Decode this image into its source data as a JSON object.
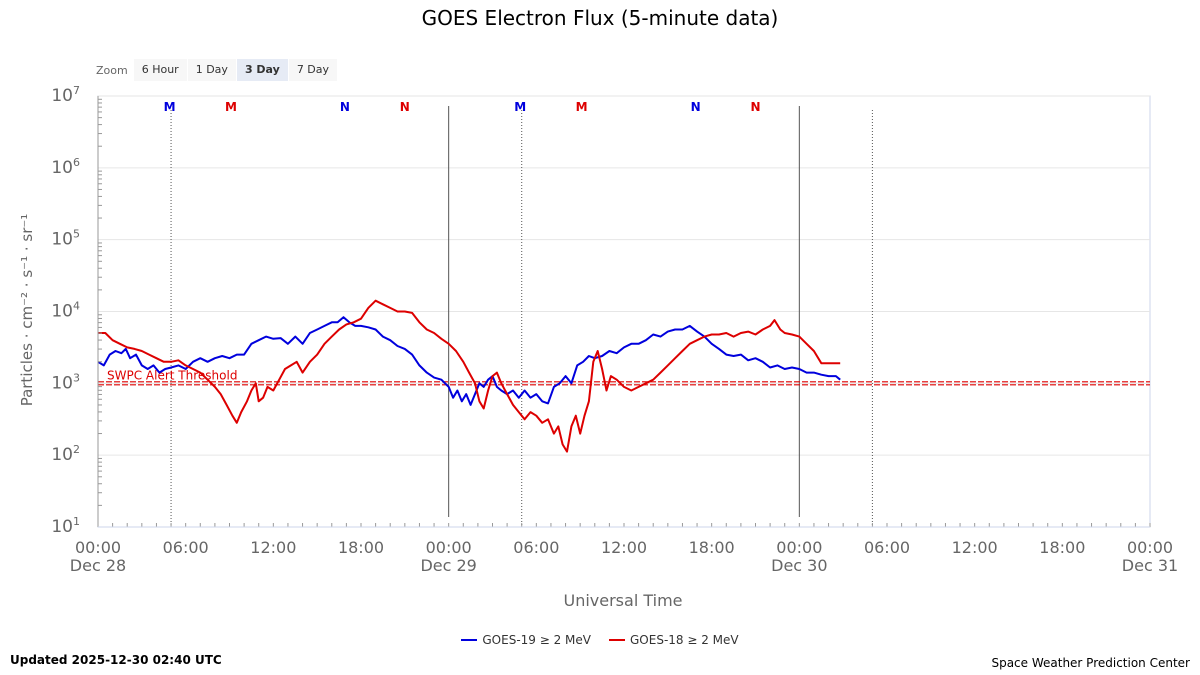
{
  "title": "GOES Electron Flux (5-minute data)",
  "zoom": {
    "label": "Zoom",
    "buttons": [
      "6 Hour",
      "1 Day",
      "3 Day",
      "7 Day"
    ],
    "active": "3 Day"
  },
  "colors": {
    "goes19": "#0000dd",
    "goes18": "#dd0000",
    "threshold": "#dd0000",
    "grid": "#e6e6e6",
    "axis": "#ccd6eb"
  },
  "legend": {
    "goes19_label": "GOES-19 ≥ 2 MeV",
    "goes18_label": "GOES-18 ≥ 2 MeV"
  },
  "footer": {
    "updated": "Updated 2025-12-30 02:40 UTC",
    "credit": "Space Weather Prediction Center"
  },
  "chart_data": {
    "type": "line",
    "title": "GOES Electron Flux (5-minute data)",
    "xlabel": "Universal Time",
    "ylabel": "Particles · cm⁻² · s⁻¹ · sr⁻¹",
    "x_unit": "hours since Dec 28 00:00 UTC",
    "xlim": [
      0,
      72
    ],
    "x_ticks": [
      {
        "x": 0,
        "time": "00:00",
        "date": "Dec 28"
      },
      {
        "x": 6,
        "time": "06:00",
        "date": ""
      },
      {
        "x": 12,
        "time": "12:00",
        "date": ""
      },
      {
        "x": 18,
        "time": "18:00",
        "date": ""
      },
      {
        "x": 24,
        "time": "00:00",
        "date": "Dec 29"
      },
      {
        "x": 30,
        "time": "06:00",
        "date": ""
      },
      {
        "x": 36,
        "time": "12:00",
        "date": ""
      },
      {
        "x": 42,
        "time": "18:00",
        "date": ""
      },
      {
        "x": 48,
        "time": "00:00",
        "date": "Dec 30"
      },
      {
        "x": 54,
        "time": "06:00",
        "date": ""
      },
      {
        "x": 60,
        "time": "12:00",
        "date": ""
      },
      {
        "x": 66,
        "time": "18:00",
        "date": ""
      },
      {
        "x": 72,
        "time": "00:00",
        "date": "Dec 31"
      }
    ],
    "y_scale": "log",
    "ylim_exponent": [
      1,
      7
    ],
    "y_ticks": [
      {
        "value": 1,
        "base": "10",
        "exp": "1"
      },
      {
        "value": 2,
        "base": "10",
        "exp": "2"
      },
      {
        "value": 3,
        "base": "10",
        "exp": "3"
      },
      {
        "value": 4,
        "base": "10",
        "exp": "4"
      },
      {
        "value": 5,
        "base": "10",
        "exp": "5"
      },
      {
        "value": 6,
        "base": "10",
        "exp": "6"
      },
      {
        "value": 7,
        "base": "10",
        "exp": "7"
      }
    ],
    "grid": true,
    "threshold": {
      "label": "SWPC Alert Threshold",
      "log10": 3.0
    },
    "day_boundaries": [
      24,
      48
    ],
    "midnight_markers": [
      {
        "label": "M",
        "x": 4.9,
        "series": "goes19"
      },
      {
        "label": "M",
        "x": 9.1,
        "series": "goes18"
      },
      {
        "label": "N",
        "x": 16.9,
        "series": "goes19"
      },
      {
        "label": "N",
        "x": 21.0,
        "series": "goes18"
      },
      {
        "label": "M",
        "x": 28.9,
        "series": "goes19"
      },
      {
        "label": "M",
        "x": 33.1,
        "series": "goes18"
      },
      {
        "label": "N",
        "x": 40.9,
        "series": "goes19"
      },
      {
        "label": "N",
        "x": 45.0,
        "series": "goes18"
      }
    ],
    "dotted_lines": [
      5.0,
      29.0,
      53.0
    ],
    "legend_position": "bottom-center",
    "series": [
      {
        "name": "GOES-19 ≥ 2 MeV",
        "key": "goes19",
        "points": [
          [
            0,
            3.3
          ],
          [
            0.4,
            3.25
          ],
          [
            0.8,
            3.4
          ],
          [
            1.2,
            3.45
          ],
          [
            1.6,
            3.42
          ],
          [
            1.9,
            3.48
          ],
          [
            2.2,
            3.35
          ],
          [
            2.6,
            3.4
          ],
          [
            3.0,
            3.25
          ],
          [
            3.4,
            3.2
          ],
          [
            3.8,
            3.25
          ],
          [
            4.2,
            3.15
          ],
          [
            4.6,
            3.2
          ],
          [
            5.0,
            3.22
          ],
          [
            5.5,
            3.25
          ],
          [
            6.0,
            3.2
          ],
          [
            6.5,
            3.3
          ],
          [
            7.0,
            3.35
          ],
          [
            7.5,
            3.3
          ],
          [
            8.0,
            3.35
          ],
          [
            8.5,
            3.38
          ],
          [
            9.0,
            3.35
          ],
          [
            9.5,
            3.4
          ],
          [
            10.0,
            3.4
          ],
          [
            10.5,
            3.55
          ],
          [
            11.0,
            3.6
          ],
          [
            11.5,
            3.65
          ],
          [
            12.0,
            3.62
          ],
          [
            12.5,
            3.63
          ],
          [
            13.0,
            3.55
          ],
          [
            13.5,
            3.65
          ],
          [
            14.0,
            3.55
          ],
          [
            14.5,
            3.7
          ],
          [
            15.0,
            3.75
          ],
          [
            15.5,
            3.8
          ],
          [
            16.0,
            3.85
          ],
          [
            16.4,
            3.85
          ],
          [
            16.8,
            3.92
          ],
          [
            17.2,
            3.85
          ],
          [
            17.6,
            3.8
          ],
          [
            18.0,
            3.8
          ],
          [
            18.5,
            3.78
          ],
          [
            19.0,
            3.75
          ],
          [
            19.5,
            3.65
          ],
          [
            20.0,
            3.6
          ],
          [
            20.5,
            3.52
          ],
          [
            21.0,
            3.48
          ],
          [
            21.5,
            3.4
          ],
          [
            22.0,
            3.25
          ],
          [
            22.5,
            3.15
          ],
          [
            23.0,
            3.08
          ],
          [
            23.5,
            3.05
          ],
          [
            24.0,
            2.95
          ],
          [
            24.3,
            2.8
          ],
          [
            24.6,
            2.9
          ],
          [
            24.9,
            2.75
          ],
          [
            25.2,
            2.85
          ],
          [
            25.5,
            2.7
          ],
          [
            25.8,
            2.85
          ],
          [
            26.1,
            3.0
          ],
          [
            26.4,
            2.95
          ],
          [
            26.7,
            3.05
          ],
          [
            27.0,
            3.1
          ],
          [
            27.3,
            2.95
          ],
          [
            27.6,
            2.9
          ],
          [
            28.0,
            2.85
          ],
          [
            28.4,
            2.9
          ],
          [
            28.8,
            2.8
          ],
          [
            29.2,
            2.9
          ],
          [
            29.6,
            2.8
          ],
          [
            30.0,
            2.85
          ],
          [
            30.4,
            2.75
          ],
          [
            30.8,
            2.72
          ],
          [
            31.2,
            2.95
          ],
          [
            31.6,
            3.0
          ],
          [
            32.0,
            3.1
          ],
          [
            32.4,
            3.0
          ],
          [
            32.8,
            3.25
          ],
          [
            33.2,
            3.3
          ],
          [
            33.6,
            3.38
          ],
          [
            34.0,
            3.35
          ],
          [
            34.5,
            3.38
          ],
          [
            35.0,
            3.45
          ],
          [
            35.5,
            3.42
          ],
          [
            36.0,
            3.5
          ],
          [
            36.5,
            3.55
          ],
          [
            37.0,
            3.55
          ],
          [
            37.5,
            3.6
          ],
          [
            38.0,
            3.68
          ],
          [
            38.5,
            3.65
          ],
          [
            39.0,
            3.72
          ],
          [
            39.5,
            3.75
          ],
          [
            40.0,
            3.75
          ],
          [
            40.5,
            3.8
          ],
          [
            41.0,
            3.72
          ],
          [
            41.5,
            3.65
          ],
          [
            42.0,
            3.55
          ],
          [
            42.5,
            3.48
          ],
          [
            43.0,
            3.4
          ],
          [
            43.5,
            3.38
          ],
          [
            44.0,
            3.4
          ],
          [
            44.5,
            3.32
          ],
          [
            45.0,
            3.35
          ],
          [
            45.5,
            3.3
          ],
          [
            46.0,
            3.22
          ],
          [
            46.5,
            3.25
          ],
          [
            47.0,
            3.2
          ],
          [
            47.5,
            3.22
          ],
          [
            48.0,
            3.2
          ],
          [
            48.5,
            3.15
          ],
          [
            49.0,
            3.15
          ],
          [
            49.5,
            3.12
          ],
          [
            50.0,
            3.1
          ],
          [
            50.5,
            3.1
          ],
          [
            50.8,
            3.05
          ]
        ]
      },
      {
        "name": "GOES-18 ≥ 2 MeV",
        "key": "goes18",
        "points": [
          [
            0,
            3.7
          ],
          [
            0.5,
            3.7
          ],
          [
            1.0,
            3.6
          ],
          [
            1.5,
            3.55
          ],
          [
            2.0,
            3.5
          ],
          [
            2.5,
            3.48
          ],
          [
            3.0,
            3.45
          ],
          [
            3.5,
            3.4
          ],
          [
            4.0,
            3.35
          ],
          [
            4.5,
            3.3
          ],
          [
            5.0,
            3.3
          ],
          [
            5.5,
            3.32
          ],
          [
            6.0,
            3.25
          ],
          [
            6.5,
            3.2
          ],
          [
            7.0,
            3.15
          ],
          [
            7.5,
            3.05
          ],
          [
            8.0,
            2.95
          ],
          [
            8.4,
            2.85
          ],
          [
            8.8,
            2.7
          ],
          [
            9.2,
            2.55
          ],
          [
            9.5,
            2.45
          ],
          [
            9.8,
            2.6
          ],
          [
            10.2,
            2.75
          ],
          [
            10.5,
            2.9
          ],
          [
            10.8,
            3.0
          ],
          [
            11.0,
            2.75
          ],
          [
            11.3,
            2.8
          ],
          [
            11.6,
            2.95
          ],
          [
            12.0,
            2.9
          ],
          [
            12.4,
            3.05
          ],
          [
            12.8,
            3.2
          ],
          [
            13.2,
            3.25
          ],
          [
            13.6,
            3.3
          ],
          [
            14.0,
            3.15
          ],
          [
            14.5,
            3.3
          ],
          [
            15.0,
            3.4
          ],
          [
            15.5,
            3.55
          ],
          [
            16.0,
            3.65
          ],
          [
            16.5,
            3.75
          ],
          [
            17.0,
            3.82
          ],
          [
            17.5,
            3.85
          ],
          [
            18.0,
            3.9
          ],
          [
            18.5,
            4.05
          ],
          [
            19.0,
            4.15
          ],
          [
            19.5,
            4.1
          ],
          [
            20.0,
            4.05
          ],
          [
            20.5,
            4.0
          ],
          [
            21.0,
            4.0
          ],
          [
            21.5,
            3.98
          ],
          [
            22.0,
            3.85
          ],
          [
            22.5,
            3.75
          ],
          [
            23.0,
            3.7
          ],
          [
            23.5,
            3.62
          ],
          [
            24.0,
            3.55
          ],
          [
            24.5,
            3.45
          ],
          [
            25.0,
            3.3
          ],
          [
            25.4,
            3.15
          ],
          [
            25.8,
            3.0
          ],
          [
            26.1,
            2.75
          ],
          [
            26.4,
            2.65
          ],
          [
            26.7,
            2.9
          ],
          [
            27.0,
            3.1
          ],
          [
            27.3,
            3.15
          ],
          [
            27.6,
            3.0
          ],
          [
            28.0,
            2.85
          ],
          [
            28.4,
            2.7
          ],
          [
            28.8,
            2.6
          ],
          [
            29.2,
            2.5
          ],
          [
            29.6,
            2.6
          ],
          [
            30.0,
            2.55
          ],
          [
            30.4,
            2.45
          ],
          [
            30.8,
            2.5
          ],
          [
            31.2,
            2.3
          ],
          [
            31.5,
            2.4
          ],
          [
            31.8,
            2.15
          ],
          [
            32.1,
            2.05
          ],
          [
            32.4,
            2.4
          ],
          [
            32.7,
            2.55
          ],
          [
            33.0,
            2.3
          ],
          [
            33.3,
            2.55
          ],
          [
            33.6,
            2.75
          ],
          [
            33.9,
            3.3
          ],
          [
            34.2,
            3.45
          ],
          [
            34.5,
            3.2
          ],
          [
            34.8,
            2.9
          ],
          [
            35.1,
            3.1
          ],
          [
            35.5,
            3.05
          ],
          [
            36.0,
            2.95
          ],
          [
            36.5,
            2.9
          ],
          [
            37.0,
            2.95
          ],
          [
            37.5,
            3.0
          ],
          [
            38.0,
            3.05
          ],
          [
            38.5,
            3.15
          ],
          [
            39.0,
            3.25
          ],
          [
            39.5,
            3.35
          ],
          [
            40.0,
            3.45
          ],
          [
            40.5,
            3.55
          ],
          [
            41.0,
            3.6
          ],
          [
            41.5,
            3.65
          ],
          [
            42.0,
            3.68
          ],
          [
            42.5,
            3.68
          ],
          [
            43.0,
            3.7
          ],
          [
            43.5,
            3.65
          ],
          [
            44.0,
            3.7
          ],
          [
            44.5,
            3.72
          ],
          [
            45.0,
            3.68
          ],
          [
            45.5,
            3.75
          ],
          [
            46.0,
            3.8
          ],
          [
            46.3,
            3.88
          ],
          [
            46.7,
            3.75
          ],
          [
            47.0,
            3.7
          ],
          [
            47.5,
            3.68
          ],
          [
            48.0,
            3.65
          ],
          [
            48.5,
            3.55
          ],
          [
            49.0,
            3.45
          ],
          [
            49.5,
            3.28
          ],
          [
            50.0,
            3.28
          ],
          [
            50.5,
            3.28
          ],
          [
            50.8,
            3.28
          ]
        ]
      }
    ]
  }
}
